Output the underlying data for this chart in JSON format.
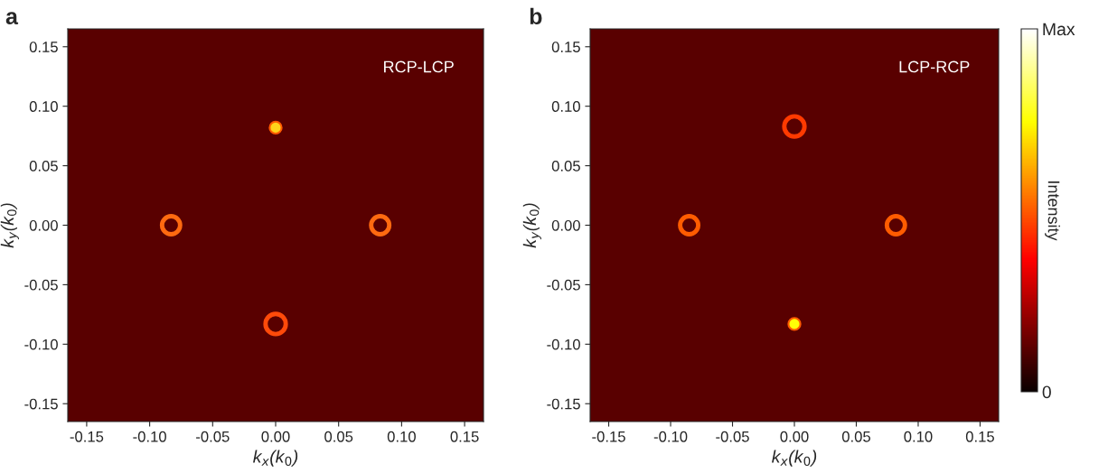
{
  "chart_data": [
    {
      "type": "bubble",
      "title": "a",
      "xlabel": "k$_{x}$(k$_{0}$)",
      "ylabel": "k$_{y}$(k$_{0}$)",
      "annotations": [
        "RCP-LCP"
      ],
      "x": [
        0.0,
        -0.083,
        0.083,
        0.0
      ],
      "values": [
        0.082,
        0.0,
        0.0,
        -0.083
      ],
      "sizes": [
        0.35,
        0.8,
        0.8,
        1.0
      ],
      "colors": [
        "#ffd21a",
        "#ff6a10",
        "#ff6a10",
        "#ff4a0a"
      ],
      "xlim": [
        -0.165,
        0.165
      ],
      "ylim": [
        -0.165,
        0.165
      ],
      "xticks": [
        {
          "value": -0.15,
          "label": "-0.15"
        },
        {
          "value": -0.1,
          "label": "-0.10"
        },
        {
          "value": -0.05,
          "label": "-0.05"
        },
        {
          "value": 0,
          "label": "0.00"
        },
        {
          "value": 0.05,
          "label": "0.05"
        },
        {
          "value": 0.1,
          "label": "0.10"
        },
        {
          "value": 0.15,
          "label": "0.15"
        }
      ],
      "yticks": [
        {
          "value": -0.15,
          "label": "-0.15"
        },
        {
          "value": -0.1,
          "label": "-0.10"
        },
        {
          "value": -0.05,
          "label": "-0.05"
        },
        {
          "value": 0,
          "label": "0.00"
        },
        {
          "value": 0.05,
          "label": "0.05"
        },
        {
          "value": 0.1,
          "label": "0.10"
        },
        {
          "value": 0.15,
          "label": "0.15"
        }
      ]
    },
    {
      "type": "bubble",
      "title": "b",
      "xlabel": "k$_{x}$(k$_{0}$)",
      "ylabel": "k$_{y}$(k$_{0}$)",
      "annotations": [
        "LCP-RCP"
      ],
      "clabel": "Intensity",
      "x": [
        0.0,
        -0.085,
        0.082,
        0.0
      ],
      "values": [
        0.083,
        0.0,
        0.0,
        -0.083
      ],
      "sizes": [
        1.0,
        0.8,
        0.8,
        0.35
      ],
      "cvalues": [
        0.45,
        0.5,
        0.5,
        0.75
      ],
      "clim": [
        0,
        1
      ],
      "cticks": [
        {
          "value": 0,
          "label": "0"
        },
        {
          "value": 1,
          "label": "Max"
        }
      ],
      "xlim": [
        -0.165,
        0.165
      ],
      "ylim": [
        -0.165,
        0.165
      ],
      "xticks": [
        {
          "value": -0.15,
          "label": "-0.15"
        },
        {
          "value": -0.1,
          "label": "-0.10"
        },
        {
          "value": -0.05,
          "label": "-0.05"
        },
        {
          "value": 0,
          "label": "0.00"
        },
        {
          "value": 0.05,
          "label": "0.05"
        },
        {
          "value": 0.1,
          "label": "0.10"
        },
        {
          "value": 0.15,
          "label": "0.15"
        }
      ],
      "yticks": [
        {
          "value": -0.15,
          "label": "-0.15"
        },
        {
          "value": -0.1,
          "label": "-0.10"
        },
        {
          "value": -0.05,
          "label": "-0.05"
        },
        {
          "value": 0,
          "label": "0.00"
        },
        {
          "value": 0.05,
          "label": "0.05"
        },
        {
          "value": 0.1,
          "label": "0.10"
        },
        {
          "value": 0.15,
          "label": "0.15"
        }
      ]
    }
  ]
}
